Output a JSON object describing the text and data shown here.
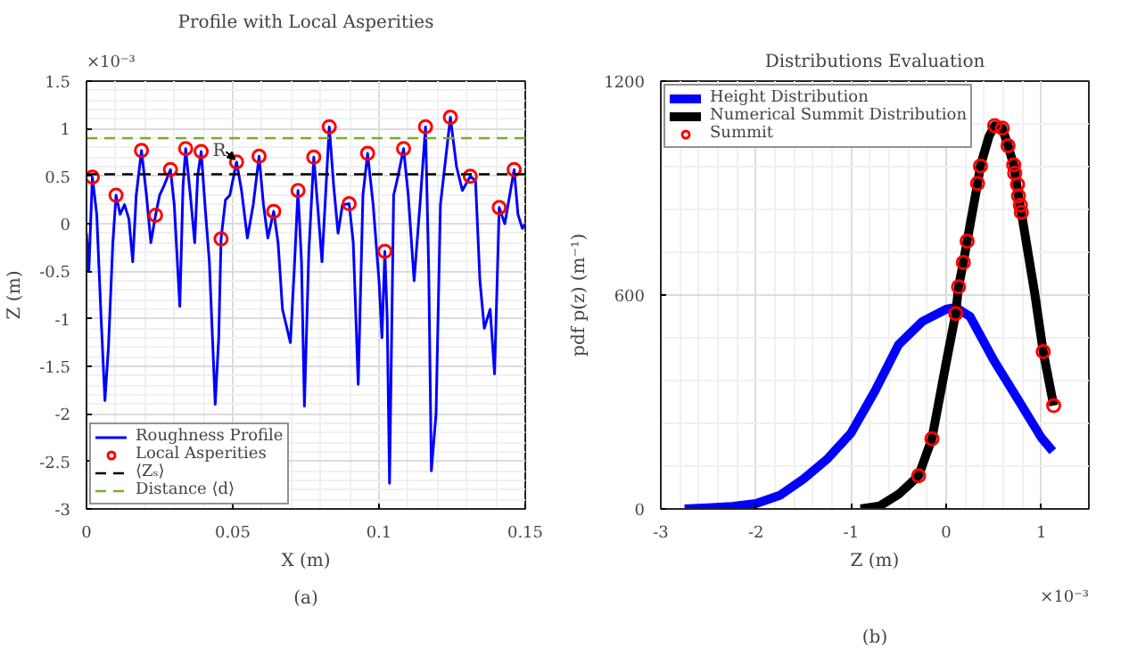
{
  "chart_data": [
    {
      "type": "line",
      "title": "Profile with Local Asperities",
      "xlabel": "X (m)",
      "ylabel": "Z (m)",
      "xlim": [
        0,
        0.15
      ],
      "xticks": [
        0,
        0.05,
        0.1,
        0.15
      ],
      "ylim": [
        -3,
        1.5
      ],
      "yticks": [
        -3,
        -2.5,
        -2,
        -1.5,
        -1,
        -0.5,
        0,
        0.5,
        1,
        1.5
      ],
      "grid": true,
      "legend": "bottom left",
      "series": [
        {
          "name": "Roughness Profile",
          "color": "#0000ff",
          "x": [
            0.0,
            0.0008,
            0.002,
            0.0035,
            0.005,
            0.0063,
            0.0075,
            0.009,
            0.0101,
            0.0115,
            0.013,
            0.0145,
            0.0158,
            0.017,
            0.0188,
            0.0205,
            0.022,
            0.0236,
            0.025,
            0.0265,
            0.0287,
            0.03,
            0.0319,
            0.033,
            0.0339,
            0.0355,
            0.037,
            0.038,
            0.0392,
            0.0405,
            0.042,
            0.044,
            0.0452,
            0.046,
            0.0475,
            0.049,
            0.0513,
            0.053,
            0.055,
            0.057,
            0.059,
            0.0605,
            0.062,
            0.064,
            0.0655,
            0.067,
            0.0697,
            0.071,
            0.0723,
            0.0735,
            0.0745,
            0.076,
            0.0777,
            0.079,
            0.0805,
            0.083,
            0.0845,
            0.086,
            0.0875,
            0.0898,
            0.0912,
            0.0929,
            0.0945,
            0.0961,
            0.098,
            0.1,
            0.101,
            0.102,
            0.1028,
            0.1036,
            0.105,
            0.1065,
            0.1084,
            0.11,
            0.112,
            0.114,
            0.1159,
            0.117,
            0.1179,
            0.1195,
            0.121,
            0.1244,
            0.1265,
            0.1285,
            0.1312,
            0.133,
            0.1345,
            0.136,
            0.138,
            0.1395,
            0.1411,
            0.143,
            0.1462,
            0.1475,
            0.149,
            0.15
          ],
          "values": [
            -0.1,
            -0.5,
            0.49,
            0.1,
            -1.0,
            -1.86,
            -1.3,
            -0.2,
            0.3,
            0.1,
            0.2,
            0.05,
            -0.4,
            0.3,
            0.77,
            0.3,
            -0.2,
            0.09,
            0.3,
            0.4,
            0.57,
            0.2,
            -0.87,
            0.4,
            0.79,
            0.3,
            -0.2,
            0.5,
            0.76,
            0.2,
            -0.4,
            -1.9,
            -1.2,
            -0.16,
            0.25,
            0.3,
            0.65,
            0.35,
            -0.15,
            0.2,
            0.71,
            0.2,
            -0.15,
            0.13,
            -0.2,
            -0.9,
            -1.25,
            -0.5,
            0.35,
            -0.4,
            -1.92,
            -0.3,
            0.7,
            0.2,
            -0.4,
            1.02,
            0.4,
            -0.1,
            0.2,
            0.21,
            -0.2,
            -1.69,
            0.3,
            0.74,
            0.2,
            -0.6,
            -1.2,
            -0.29,
            -1.0,
            -2.73,
            0.3,
            0.5,
            0.79,
            0.3,
            -0.6,
            0.2,
            1.02,
            -0.5,
            -2.6,
            -2.0,
            0.2,
            1.12,
            0.6,
            0.35,
            0.5,
            0.45,
            -0.6,
            -1.1,
            -0.9,
            -1.58,
            0.17,
            0.0,
            0.57,
            0.1,
            -0.05,
            0.0
          ]
        },
        {
          "name": "Local Asperities",
          "type": "scatter",
          "marker": "circle",
          "color": "#ff0000",
          "x": [
            0.002,
            0.0101,
            0.0188,
            0.0236,
            0.0287,
            0.0339,
            0.0392,
            0.046,
            0.0513,
            0.059,
            0.064,
            0.0723,
            0.0777,
            0.083,
            0.0898,
            0.0961,
            0.102,
            0.1084,
            0.1159,
            0.1244,
            0.1312,
            0.1411,
            0.1462
          ],
          "values": [
            0.49,
            0.3,
            0.77,
            0.09,
            0.57,
            0.79,
            0.76,
            -0.16,
            0.65,
            0.71,
            0.13,
            0.35,
            0.7,
            1.02,
            0.21,
            0.74,
            -0.29,
            0.79,
            1.02,
            1.12,
            0.5,
            0.17,
            0.57
          ]
        }
      ],
      "ref_lines": [
        {
          "axis": "y",
          "value": 0.52,
          "label": "⟨Zₛ⟩",
          "color": "#000000",
          "line_style": "dashed"
        },
        {
          "axis": "y",
          "value": 0.9,
          "label": "Distance ⟨d⟩",
          "color": "#77ac30",
          "line_style": "dashed"
        }
      ],
      "annotations": [
        "(a)",
        "×10⁻³",
        {
          "text": "R",
          "x": 0.0513,
          "y": 0.65
        }
      ]
    },
    {
      "type": "line",
      "title": "Distributions Evaluation",
      "xlabel": "Z (m)",
      "ylabel": "pdf p(z) (m⁻¹)",
      "xlim": [
        -3,
        1.5
      ],
      "xticks": [
        -3,
        -2,
        -1,
        0,
        1
      ],
      "ylim": [
        0,
        1200
      ],
      "yticks": [
        0,
        600,
        1200
      ],
      "grid": true,
      "legend": "top left",
      "series": [
        {
          "name": "Height Distribution",
          "color": "#0000ff",
          "x": [
            -2.75,
            -2.5,
            -2.25,
            -2.0,
            -1.75,
            -1.5,
            -1.25,
            -1.0,
            -0.75,
            -0.5,
            -0.25,
            0.0,
            0.1,
            0.25,
            0.5,
            0.75,
            1.0,
            1.12
          ],
          "values": [
            0,
            3,
            7,
            15,
            38,
            84,
            140,
            213,
            330,
            461,
            526,
            560,
            565,
            540,
            417,
            309,
            200,
            162
          ]
        },
        {
          "name": "Numerical Summit Distribution",
          "color": "#000000",
          "x": [
            -0.9,
            -0.7,
            -0.5,
            -0.29,
            -0.15,
            0.0,
            0.1,
            0.13,
            0.18,
            0.22,
            0.33,
            0.36,
            0.45,
            0.51,
            0.59,
            0.65,
            0.71,
            0.76,
            0.79,
            0.93,
            1.02,
            1.13
          ],
          "values": [
            0,
            8,
            41,
            93,
            197,
            410,
            548,
            623,
            691,
            751,
            913,
            962,
            1045,
            1075,
            1068,
            1019,
            965,
            878,
            832,
            606,
            441,
            290
          ]
        },
        {
          "name": "Summit",
          "type": "scatter",
          "marker": "circle",
          "color": "#ff0000",
          "x": [
            -0.29,
            -0.15,
            0.1,
            0.13,
            0.18,
            0.22,
            0.33,
            0.36,
            0.51,
            0.59,
            0.65,
            0.71,
            0.72,
            0.75,
            0.76,
            0.78,
            0.79,
            1.02,
            1.13
          ],
          "values": [
            93,
            197,
            548,
            623,
            691,
            751,
            913,
            962,
            1075,
            1068,
            1019,
            965,
            942,
            910,
            878,
            852,
            832,
            441,
            290
          ]
        }
      ],
      "annotations": [
        "(b)",
        "×10⁻³"
      ]
    }
  ]
}
